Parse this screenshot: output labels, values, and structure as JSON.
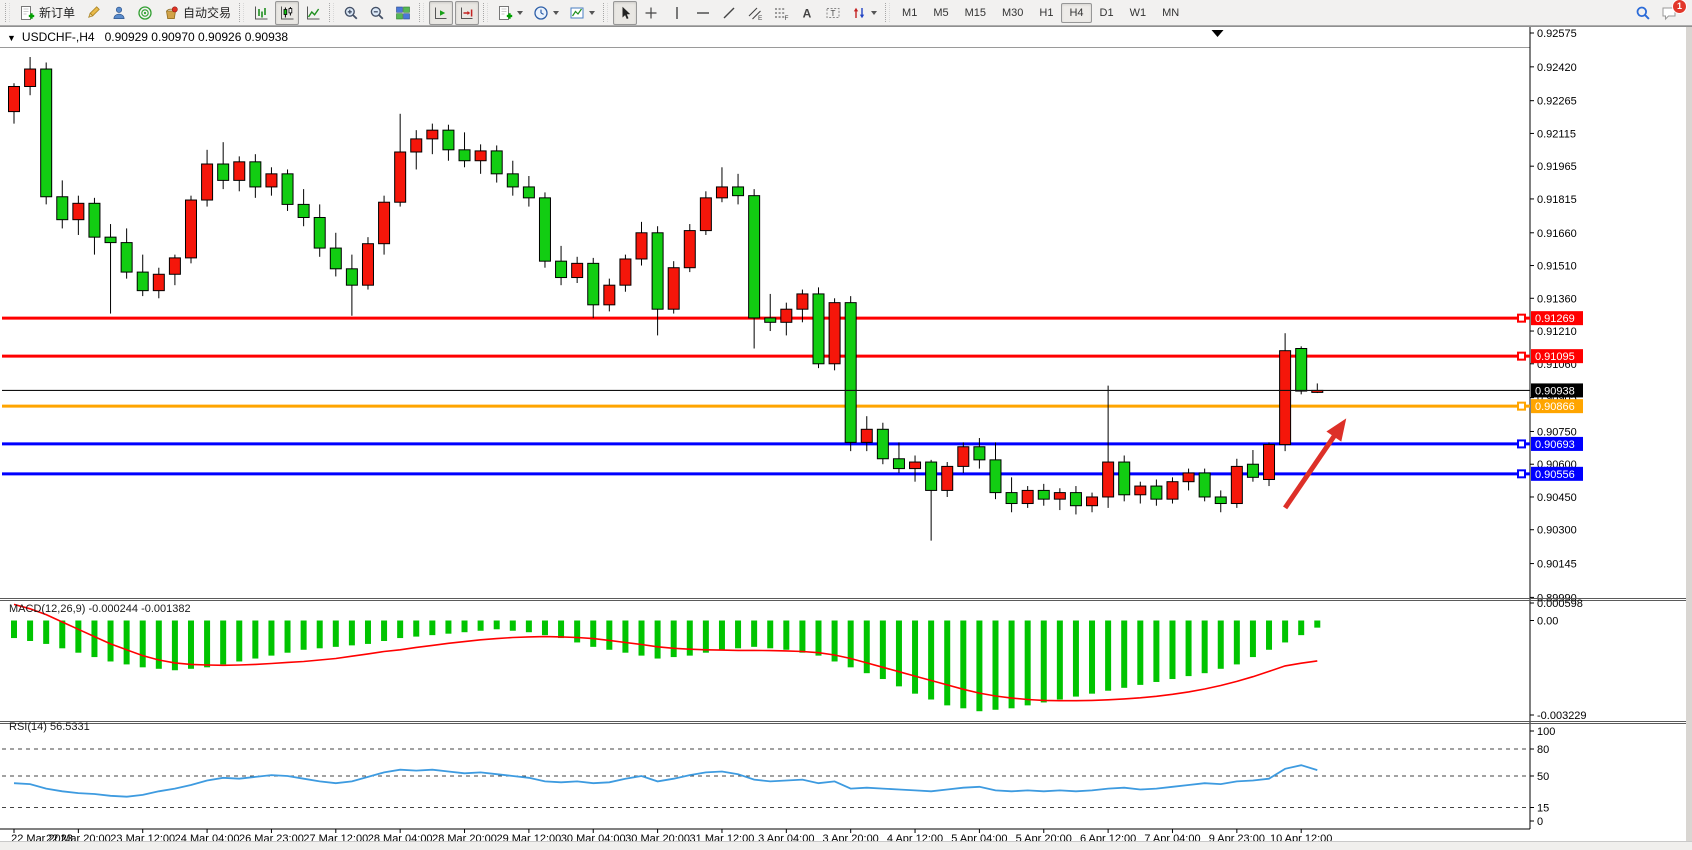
{
  "toolbar": {
    "groups": [
      {
        "buttons": [
          {
            "name": "new-order-button",
            "icon": "new-order",
            "label": "新订单"
          },
          {
            "name": "metaeditor-button",
            "icon": "crayon"
          },
          {
            "name": "market-button",
            "icon": "person"
          },
          {
            "name": "signals-button",
            "icon": "radar"
          },
          {
            "name": "autotrading-button",
            "icon": "bucket",
            "label": "自动交易"
          }
        ]
      },
      {
        "buttons": [
          {
            "name": "bar-chart-button",
            "icon": "bars"
          },
          {
            "name": "candlestick-button",
            "icon": "candles",
            "active": true
          },
          {
            "name": "line-chart-button",
            "icon": "line-mode"
          }
        ]
      },
      {
        "buttons": [
          {
            "name": "zoom-in-button",
            "icon": "zoom-in"
          },
          {
            "name": "zoom-out-button",
            "icon": "zoom-out"
          },
          {
            "name": "tile-windows-button",
            "icon": "tile"
          }
        ]
      },
      {
        "buttons": [
          {
            "name": "auto-scroll-button",
            "icon": "autoscroll",
            "active": true
          },
          {
            "name": "chart-shift-button",
            "icon": "shift",
            "active": true
          }
        ]
      },
      {
        "buttons": [
          {
            "name": "indicators-button",
            "icon": "new-order",
            "caret": true
          },
          {
            "name": "periods-button",
            "icon": "clock",
            "caret": true
          },
          {
            "name": "templates-button",
            "icon": "template",
            "caret": true
          }
        ]
      },
      {
        "buttons": [
          {
            "name": "cursor-button",
            "icon": "cursor",
            "active": true
          },
          {
            "name": "crosshair-button",
            "icon": "crosshair"
          },
          {
            "name": "vertical-line-button",
            "icon": "vline"
          },
          {
            "name": "horizontal-line-button",
            "icon": "hline"
          },
          {
            "name": "trendline-button",
            "icon": "trend"
          },
          {
            "name": "equidistant-channel-button",
            "icon": "channel"
          },
          {
            "name": "fibonacci-button",
            "icon": "fibo"
          },
          {
            "name": "text-button",
            "icon": "text-a"
          },
          {
            "name": "text-label-button",
            "icon": "text-label"
          },
          {
            "name": "arrows-button",
            "icon": "arrows",
            "caret": true
          }
        ]
      }
    ],
    "timeframes": {
      "items": [
        "M1",
        "M5",
        "M15",
        "M30",
        "H1",
        "H4",
        "D1",
        "W1",
        "MN"
      ],
      "active": "H4"
    },
    "right_buttons": [
      {
        "name": "search-button",
        "icon": "search"
      },
      {
        "name": "notifications-button",
        "icon": "chat",
        "badge": "1"
      }
    ]
  },
  "header": {
    "expander": "▼",
    "title": "USDCHF-,H4",
    "ohlc": "0.90929 0.90970 0.90926 0.90938"
  },
  "chart_data": {
    "type": "candlestick",
    "symbol": "USDCHF-",
    "timeframe": "H4",
    "last_quote": {
      "open": 0.90929,
      "high": 0.9097,
      "low": 0.90926,
      "close": 0.90938
    },
    "current_price": 0.90938,
    "ylim": [
      0.8999,
      0.92575
    ],
    "price_axis_ticks": [
      "0.92575",
      "0.92420",
      "0.92265",
      "0.92115",
      "0.91965",
      "0.91815",
      "0.91660",
      "0.91510",
      "0.91360",
      "0.91210",
      "0.91060",
      "0.90905",
      "0.90750",
      "0.90600",
      "0.90450",
      "0.90300",
      "0.90145",
      "0.89990"
    ],
    "x_labels": [
      "22 Mar 2023",
      "22 Mar 20:00",
      "23 Mar 12:00",
      "24 Mar 04:00",
      "26 Mar 23:00",
      "27 Mar 12:00",
      "28 Mar 04:00",
      "28 Mar 20:00",
      "29 Mar 12:00",
      "30 Mar 04:00",
      "30 Mar 20:00",
      "31 Mar 12:00",
      "3 Apr 04:00",
      "3 Apr 20:00",
      "4 Apr 12:00",
      "5 Apr 04:00",
      "5 Apr 20:00",
      "6 Apr 12:00",
      "7 Apr 04:00",
      "9 Apr 23:00",
      "10 Apr 12:00"
    ],
    "label_every_n_candles": 4,
    "candle_colors": {
      "bullish": "#F5160A",
      "bearish": "#12CD12",
      "outline": "#000000"
    },
    "candles": [
      [
        0.92215,
        0.92345,
        0.9216,
        0.9233
      ],
      [
        0.9233,
        0.92465,
        0.9229,
        0.9241
      ],
      [
        0.9241,
        0.9244,
        0.9179,
        0.91825
      ],
      [
        0.91825,
        0.919,
        0.9168,
        0.9172
      ],
      [
        0.9172,
        0.9183,
        0.9165,
        0.91795
      ],
      [
        0.91795,
        0.9182,
        0.9156,
        0.9164
      ],
      [
        0.9164,
        0.917,
        0.9129,
        0.91615
      ],
      [
        0.91615,
        0.9168,
        0.9145,
        0.9148
      ],
      [
        0.9148,
        0.9156,
        0.9137,
        0.91395
      ],
      [
        0.91395,
        0.915,
        0.9136,
        0.9147
      ],
      [
        0.9147,
        0.9156,
        0.9142,
        0.91545
      ],
      [
        0.91545,
        0.9183,
        0.9152,
        0.9181
      ],
      [
        0.9181,
        0.9204,
        0.9178,
        0.91975
      ],
      [
        0.91975,
        0.92075,
        0.9186,
        0.919
      ],
      [
        0.919,
        0.9201,
        0.9185,
        0.91985
      ],
      [
        0.91985,
        0.9202,
        0.9182,
        0.9187
      ],
      [
        0.9187,
        0.9196,
        0.9183,
        0.9193
      ],
      [
        0.9193,
        0.9195,
        0.9176,
        0.9179
      ],
      [
        0.9179,
        0.9186,
        0.9169,
        0.9173
      ],
      [
        0.9173,
        0.9179,
        0.9155,
        0.9159
      ],
      [
        0.9159,
        0.9166,
        0.9146,
        0.91495
      ],
      [
        0.91495,
        0.9156,
        0.9128,
        0.9142
      ],
      [
        0.9142,
        0.9164,
        0.914,
        0.9161
      ],
      [
        0.9161,
        0.9183,
        0.9156,
        0.918
      ],
      [
        0.918,
        0.92205,
        0.9178,
        0.9203
      ],
      [
        0.9203,
        0.9213,
        0.9195,
        0.9209
      ],
      [
        0.9209,
        0.9216,
        0.9202,
        0.9213
      ],
      [
        0.9213,
        0.92155,
        0.9199,
        0.9204
      ],
      [
        0.9204,
        0.9212,
        0.9196,
        0.9199
      ],
      [
        0.9199,
        0.92065,
        0.9193,
        0.92035
      ],
      [
        0.92035,
        0.9206,
        0.9189,
        0.9193
      ],
      [
        0.9193,
        0.9199,
        0.9183,
        0.9187
      ],
      [
        0.9187,
        0.9192,
        0.9178,
        0.9182
      ],
      [
        0.9182,
        0.91845,
        0.915,
        0.9153
      ],
      [
        0.9153,
        0.916,
        0.9142,
        0.91455
      ],
      [
        0.91455,
        0.9155,
        0.9143,
        0.9152
      ],
      [
        0.9152,
        0.91545,
        0.9127,
        0.9133
      ],
      [
        0.9133,
        0.9145,
        0.913,
        0.9142
      ],
      [
        0.9142,
        0.9156,
        0.9139,
        0.9154
      ],
      [
        0.9154,
        0.9171,
        0.9151,
        0.9166
      ],
      [
        0.9166,
        0.9169,
        0.9119,
        0.9131
      ],
      [
        0.9131,
        0.9153,
        0.9129,
        0.915
      ],
      [
        0.915,
        0.917,
        0.9148,
        0.9167
      ],
      [
        0.9167,
        0.9185,
        0.9165,
        0.9182
      ],
      [
        0.9182,
        0.9196,
        0.918,
        0.9187
      ],
      [
        0.9187,
        0.9193,
        0.9179,
        0.9183
      ],
      [
        0.9183,
        0.9186,
        0.9113,
        0.9127
      ],
      [
        0.9127,
        0.9138,
        0.9121,
        0.9125
      ],
      [
        0.9125,
        0.9134,
        0.9119,
        0.9131
      ],
      [
        0.9131,
        0.914,
        0.9125,
        0.9138
      ],
      [
        0.9138,
        0.9141,
        0.9104,
        0.9106
      ],
      [
        0.9106,
        0.9136,
        0.9103,
        0.9134
      ],
      [
        0.9134,
        0.9137,
        0.9066,
        0.907
      ],
      [
        0.907,
        0.9082,
        0.9066,
        0.9076
      ],
      [
        0.9076,
        0.9079,
        0.906,
        0.90625
      ],
      [
        0.90625,
        0.907,
        0.9056,
        0.9058
      ],
      [
        0.9058,
        0.9064,
        0.9052,
        0.9061
      ],
      [
        0.9061,
        0.9062,
        0.9025,
        0.9048
      ],
      [
        0.9048,
        0.9061,
        0.9045,
        0.9059
      ],
      [
        0.9059,
        0.907,
        0.9056,
        0.9068
      ],
      [
        0.9068,
        0.9072,
        0.9058,
        0.9062
      ],
      [
        0.9062,
        0.907,
        0.9044,
        0.9047
      ],
      [
        0.9047,
        0.9054,
        0.9038,
        0.9042
      ],
      [
        0.9042,
        0.905,
        0.904,
        0.9048
      ],
      [
        0.9048,
        0.9051,
        0.9041,
        0.9044
      ],
      [
        0.9044,
        0.9049,
        0.9039,
        0.9047
      ],
      [
        0.9047,
        0.905,
        0.9037,
        0.9041
      ],
      [
        0.9041,
        0.9047,
        0.9038,
        0.9045
      ],
      [
        0.9045,
        0.9096,
        0.904,
        0.9061
      ],
      [
        0.9061,
        0.9064,
        0.9043,
        0.9046
      ],
      [
        0.9046,
        0.9052,
        0.9042,
        0.905
      ],
      [
        0.905,
        0.9053,
        0.9041,
        0.9044
      ],
      [
        0.9044,
        0.9054,
        0.9042,
        0.9052
      ],
      [
        0.9052,
        0.9058,
        0.9048,
        0.9056
      ],
      [
        0.9056,
        0.9058,
        0.9043,
        0.9045
      ],
      [
        0.9045,
        0.9048,
        0.9038,
        0.9042
      ],
      [
        0.9042,
        0.90625,
        0.904,
        0.9059
      ],
      [
        0.906,
        0.90665,
        0.9052,
        0.9054
      ],
      [
        0.9053,
        0.907,
        0.905,
        0.9069
      ],
      [
        0.9069,
        0.912,
        0.9066,
        0.9112
      ],
      [
        0.9113,
        0.9114,
        0.9092,
        0.90935
      ],
      [
        0.90929,
        0.9097,
        0.90926,
        0.90938
      ]
    ],
    "horizontal_levels": [
      {
        "price": 0.91269,
        "color": "#FF0000",
        "label": "0.91269"
      },
      {
        "price": 0.91095,
        "color": "#FF0000",
        "label": "0.91095"
      },
      {
        "price": 0.90866,
        "color": "#FFA500",
        "label": "0.90866"
      },
      {
        "price": 0.90693,
        "color": "#0000FF",
        "label": "0.90693"
      },
      {
        "price": 0.90556,
        "color": "#0000FF",
        "label": "0.90556"
      }
    ],
    "annotations": [
      {
        "type": "arrow",
        "color": "#DD3028",
        "from": {
          "index": 79.0,
          "price": 0.904
        },
        "to": {
          "index": 82.8,
          "price": 0.9081
        }
      }
    ],
    "shift_marker_index": 74.8,
    "indicators": {
      "macd": {
        "label": "MACD(12,26,9) -0.000244 -0.001382",
        "params": "12,26,9",
        "value": -0.000244,
        "signal_value": -0.001382,
        "axis_ticks": [
          "0.000598",
          "0.00",
          "-0.003229"
        ],
        "axis_range": [
          0.000598,
          -0.003229
        ],
        "histogram_color": "#00C400",
        "signal_color": "#FF0000",
        "histogram": [
          -0.0006,
          -0.0007,
          -0.0008,
          -0.00095,
          -0.0011,
          -0.00125,
          -0.0014,
          -0.0015,
          -0.0016,
          -0.00165,
          -0.0017,
          -0.00165,
          -0.0016,
          -0.0015,
          -0.0014,
          -0.0013,
          -0.0012,
          -0.0011,
          -0.001,
          -0.00095,
          -0.0009,
          -0.00085,
          -0.0008,
          -0.0007,
          -0.0006,
          -0.00055,
          -0.0005,
          -0.00045,
          -0.0004,
          -0.00035,
          -0.0003,
          -0.00035,
          -0.0004,
          -0.0005,
          -0.0006,
          -0.00075,
          -0.0009,
          -0.001,
          -0.0011,
          -0.0012,
          -0.0013,
          -0.00125,
          -0.0012,
          -0.0011,
          -0.001,
          -0.00095,
          -0.0009,
          -0.00095,
          -0.001,
          -0.0011,
          -0.0012,
          -0.0014,
          -0.0016,
          -0.0018,
          -0.002,
          -0.00225,
          -0.0025,
          -0.0027,
          -0.0029,
          -0.003,
          -0.0031,
          -0.00305,
          -0.003,
          -0.0029,
          -0.0028,
          -0.0027,
          -0.0026,
          -0.0025,
          -0.0024,
          -0.0023,
          -0.0022,
          -0.0021,
          -0.002,
          -0.0019,
          -0.0018,
          -0.00165,
          -0.0015,
          -0.00125,
          -0.001,
          -0.00075,
          -0.0005,
          -0.000244
        ],
        "signal": [
          0.00055,
          0.0004,
          0.0002,
          -5e-05,
          -0.0003,
          -0.00055,
          -0.0008,
          -0.001,
          -0.0012,
          -0.00135,
          -0.00145,
          -0.0015,
          -0.00152,
          -0.00153,
          -0.00152,
          -0.0015,
          -0.00147,
          -0.00143,
          -0.0014,
          -0.00135,
          -0.0013,
          -0.00122,
          -0.00114,
          -0.00106,
          -0.001,
          -0.00092,
          -0.00085,
          -0.00078,
          -0.00072,
          -0.00066,
          -0.00062,
          -0.00058,
          -0.00056,
          -0.00055,
          -0.00056,
          -0.00058,
          -0.00062,
          -0.00068,
          -0.00075,
          -0.00082,
          -0.0009,
          -0.00095,
          -0.00098,
          -0.001,
          -0.00101,
          -0.00102,
          -0.00102,
          -0.00103,
          -0.00104,
          -0.00106,
          -0.0011,
          -0.00118,
          -0.0013,
          -0.00145,
          -0.0016,
          -0.00175,
          -0.0019,
          -0.00205,
          -0.0022,
          -0.00235,
          -0.00248,
          -0.00258,
          -0.00265,
          -0.0027,
          -0.00273,
          -0.00274,
          -0.00274,
          -0.00273,
          -0.00271,
          -0.00268,
          -0.00264,
          -0.00259,
          -0.00252,
          -0.00244,
          -0.00234,
          -0.00222,
          -0.00208,
          -0.00192,
          -0.00174,
          -0.00155,
          -0.00146,
          -0.001382
        ]
      },
      "rsi": {
        "label": "RSI(14) 56.5331",
        "period": 14,
        "value": 56.5331,
        "axis_ticks": [
          "100",
          "80",
          "50",
          "15",
          "0"
        ],
        "levels": [
          80,
          50,
          15
        ],
        "line_color": "#3E9BE0",
        "values": [
          42,
          41,
          36,
          33,
          31,
          30,
          28,
          27,
          29,
          33,
          36,
          40,
          45,
          48,
          47,
          49,
          51,
          50,
          47,
          44,
          42,
          44,
          49,
          54,
          57,
          56,
          57,
          55,
          53,
          54,
          52,
          50,
          48,
          44,
          43,
          44,
          42,
          43,
          47,
          50,
          44,
          47,
          51,
          54,
          55,
          52,
          46,
          44,
          45,
          46,
          42,
          44,
          36,
          37,
          36,
          35,
          34,
          33,
          35,
          37,
          38,
          34,
          33,
          34,
          33,
          34,
          33,
          34,
          36,
          37,
          35,
          36,
          38,
          40,
          42,
          41,
          44,
          45,
          47,
          58,
          62,
          56.5
        ]
      }
    }
  }
}
